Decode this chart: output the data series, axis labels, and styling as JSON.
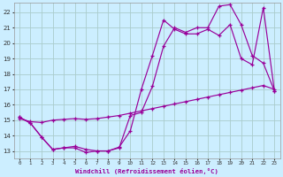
{
  "xlabel": "Windchill (Refroidissement éolien,°C)",
  "background_color": "#cceeff",
  "grid_color": "#aacccc",
  "line_color": "#990099",
  "xlim": [
    -0.5,
    23.5
  ],
  "ylim": [
    12.5,
    22.6
  ],
  "xticks": [
    0,
    1,
    2,
    3,
    4,
    5,
    6,
    7,
    8,
    9,
    10,
    11,
    12,
    13,
    14,
    15,
    16,
    17,
    18,
    19,
    20,
    21,
    22,
    23
  ],
  "yticks": [
    13,
    14,
    15,
    16,
    17,
    18,
    19,
    20,
    21,
    22
  ],
  "line1_x": [
    0,
    1,
    2,
    3,
    4,
    5,
    6,
    7,
    8,
    9,
    10,
    11,
    12,
    13,
    14,
    15,
    16,
    17,
    18,
    19,
    20,
    21,
    22,
    23
  ],
  "line1_y": [
    15.2,
    14.8,
    13.9,
    13.1,
    13.2,
    13.2,
    12.9,
    13.0,
    13.0,
    13.25,
    14.3,
    17.0,
    19.2,
    21.5,
    20.9,
    20.6,
    20.6,
    20.9,
    20.5,
    21.2,
    19.0,
    18.6,
    22.3,
    16.9
  ],
  "line2_x": [
    0,
    1,
    2,
    3,
    4,
    5,
    6,
    7,
    8,
    9,
    10,
    11,
    12,
    13,
    14,
    15,
    16,
    17,
    18,
    19,
    20,
    21,
    22,
    23
  ],
  "line2_y": [
    15.1,
    14.9,
    14.85,
    15.0,
    15.05,
    15.1,
    15.05,
    15.1,
    15.2,
    15.3,
    15.45,
    15.6,
    15.75,
    15.9,
    16.05,
    16.2,
    16.35,
    16.5,
    16.65,
    16.8,
    16.95,
    17.1,
    17.25,
    17.0
  ],
  "line3_x": [
    0,
    1,
    2,
    3,
    4,
    5,
    6,
    7,
    8,
    9,
    10,
    11,
    12,
    13,
    14,
    15,
    16,
    17,
    18,
    19,
    20,
    21,
    22,
    23
  ],
  "line3_y": [
    15.2,
    14.8,
    13.9,
    13.1,
    13.2,
    13.3,
    13.1,
    13.0,
    13.0,
    13.2,
    15.3,
    15.5,
    17.2,
    19.8,
    21.0,
    20.7,
    21.0,
    21.0,
    22.4,
    22.5,
    21.2,
    19.2,
    18.7,
    16.9
  ]
}
